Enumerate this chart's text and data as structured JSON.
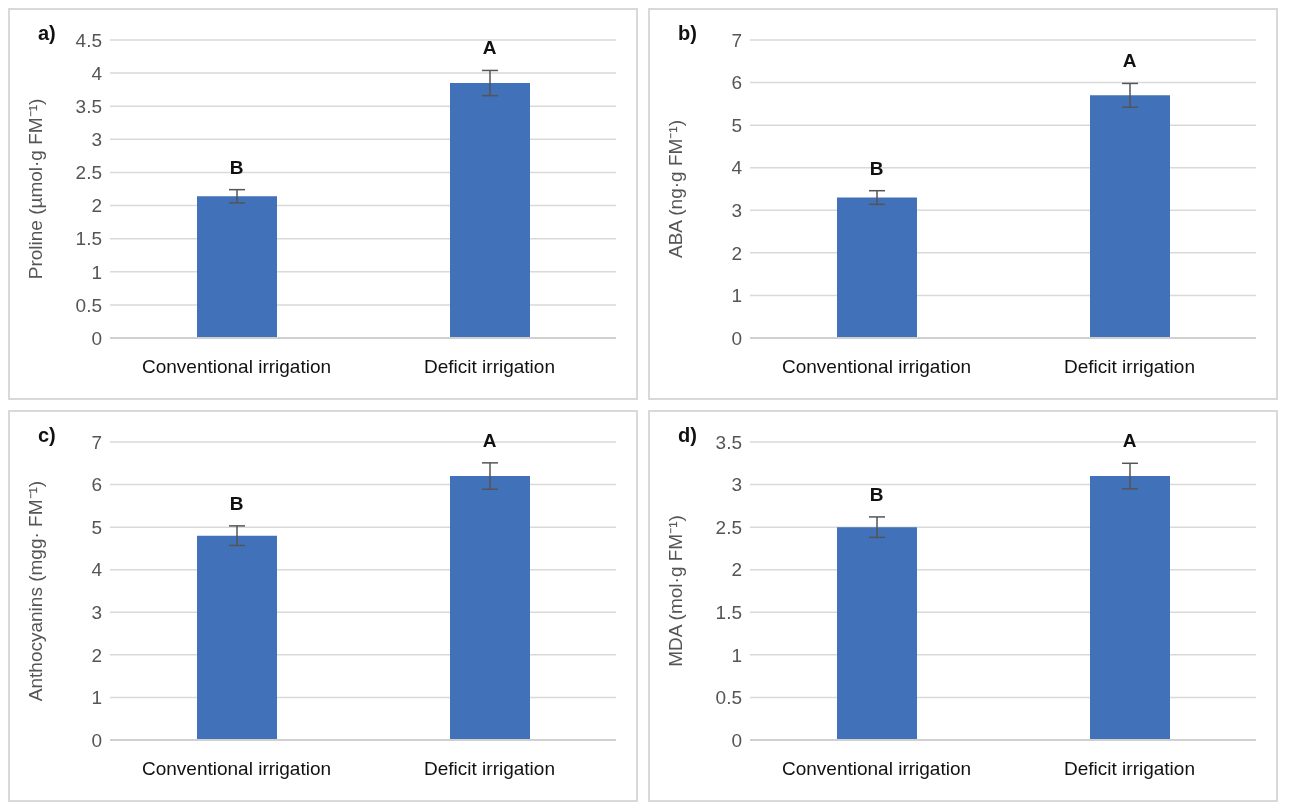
{
  "chart_data": [
    {
      "type": "bar",
      "title": "a)",
      "ylabel": "Proline (µmol·g FM⁻¹)",
      "categories": [
        "Conventional irrigation",
        "Deficit irrigation"
      ],
      "values": [
        2.14,
        3.85
      ],
      "errors": [
        0.1,
        0.19
      ],
      "color": "#4171b9",
      "ylim": [
        0,
        4.5
      ],
      "yticks": [
        0,
        0.5,
        1,
        1.5,
        2,
        2.5,
        3,
        3.5,
        4,
        4.5
      ],
      "grid": "y",
      "annotations": [
        "B",
        "A"
      ]
    },
    {
      "type": "bar",
      "title": "b)",
      "ylabel": "ABA (ng·g FM⁻¹)",
      "categories": [
        "Conventional irrigation",
        "Deficit irrigation"
      ],
      "values": [
        3.3,
        5.7
      ],
      "errors": [
        0.16,
        0.28
      ],
      "color": "#4171b9",
      "ylim": [
        0,
        7
      ],
      "yticks": [
        0,
        1,
        2,
        3,
        4,
        5,
        6,
        7
      ],
      "grid": "y",
      "annotations": [
        "B",
        "A"
      ]
    },
    {
      "type": "bar",
      "title": "c)",
      "ylabel": "Anthocyanins (mgg· FM⁻¹)",
      "categories": [
        "Conventional irrigation",
        "Deficit irrigation"
      ],
      "values": [
        4.8,
        6.2
      ],
      "errors": [
        0.23,
        0.31
      ],
      "color": "#4171b9",
      "ylim": [
        0,
        7
      ],
      "yticks": [
        0,
        1,
        2,
        3,
        4,
        5,
        6,
        7
      ],
      "grid": "y",
      "annotations": [
        "B",
        "A"
      ]
    },
    {
      "type": "bar",
      "title": "d)",
      "ylabel": "MDA (mol·g FM⁻¹)",
      "categories": [
        "Conventional irrigation",
        "Deficit irrigation"
      ],
      "values": [
        2.5,
        3.1
      ],
      "errors": [
        0.12,
        0.15
      ],
      "color": "#4171b9",
      "ylim": [
        0,
        3.5
      ],
      "yticks": [
        0,
        0.5,
        1,
        1.5,
        2,
        2.5,
        3,
        3.5
      ],
      "grid": "y",
      "annotations": [
        "B",
        "A"
      ]
    }
  ]
}
